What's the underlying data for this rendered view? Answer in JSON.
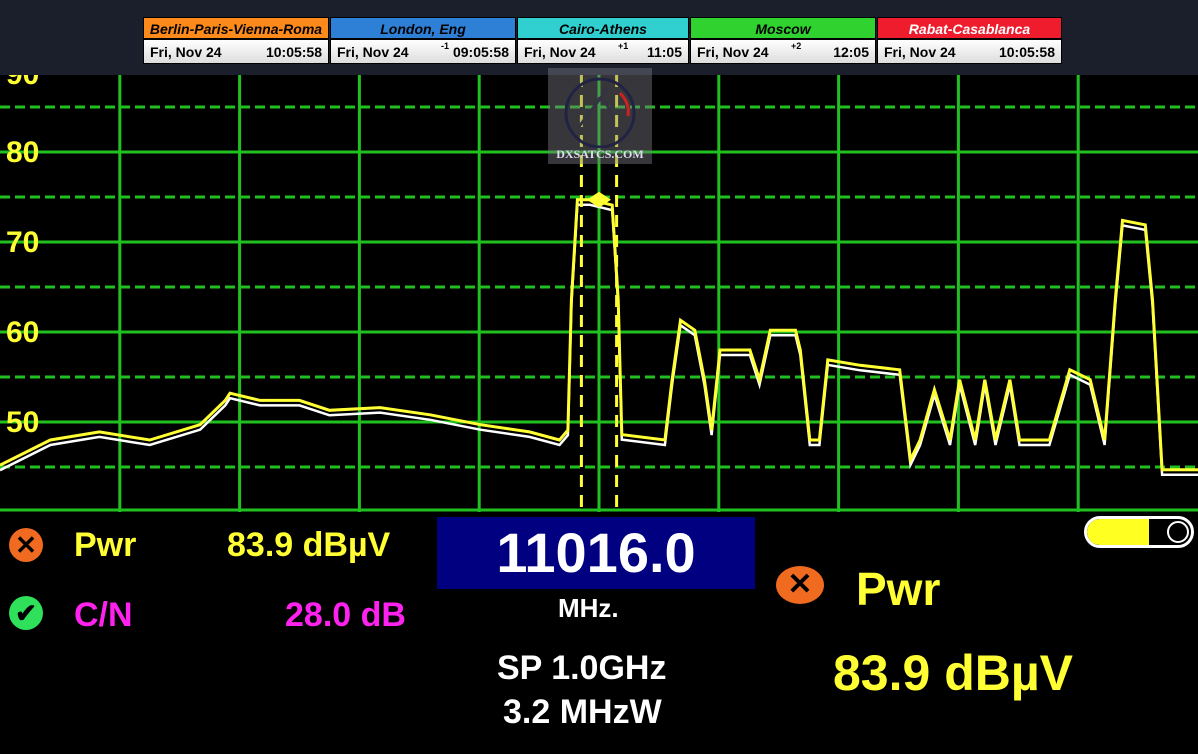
{
  "clocks": [
    {
      "city": "Berlin-Paris-Vienna-Roma",
      "color": "#ff8a1c",
      "date": "Fri, Nov 24",
      "offset": "",
      "time": "10:05:58"
    },
    {
      "city": "London, Eng",
      "color": "#2e7fd6",
      "date": "Fri, Nov 24",
      "offset": "-1",
      "time": "09:05:58"
    },
    {
      "city": "Cairo-Athens",
      "color": "#2fd0cf",
      "date": "Fri, Nov 24",
      "offset": "+1",
      "time": "11:05"
    },
    {
      "city": "Moscow",
      "color": "#2fd22f",
      "date": "Fri, Nov 24",
      "offset": "+2",
      "time": "12:05"
    },
    {
      "city": "Rabat-Casablanca",
      "color": "#ee1c2c",
      "date": "Fri, Nov 24",
      "offset": "",
      "time": "10:05:58"
    }
  ],
  "watermark": "DXSATCS.COM",
  "chart_data": {
    "type": "line",
    "title": "",
    "xlabel": "",
    "ylabel": "",
    "center_freq_mhz": 11016.0,
    "span_mhz": 1000,
    "xlim": [
      10516,
      11516
    ],
    "ylim": [
      40.2,
      88.6
    ],
    "y_ticks": [
      50,
      60,
      70,
      80,
      90
    ],
    "grid": true,
    "colors": {
      "trace": "#ffff33",
      "hold_trace": "#ffffff",
      "grid": "#1fc01f"
    },
    "marker": {
      "freq": 11016,
      "level": 74.7,
      "bandwidth_mhz": 3.2
    },
    "trace": [
      [
        10516,
        45.2
      ],
      [
        10558,
        48.0
      ],
      [
        10599,
        48.9
      ],
      [
        10641,
        48.0
      ],
      [
        10683,
        49.7
      ],
      [
        10704,
        52.4
      ],
      [
        10708,
        53.2
      ],
      [
        10733,
        52.4
      ],
      [
        10766,
        52.4
      ],
      [
        10791,
        51.3
      ],
      [
        10833,
        51.6
      ],
      [
        10875,
        50.8
      ],
      [
        10917,
        49.7
      ],
      [
        10958,
        48.9
      ],
      [
        10983,
        48.0
      ],
      [
        10990,
        49.1
      ],
      [
        10993,
        63.6
      ],
      [
        10998,
        74.7
      ],
      [
        11008,
        74.7
      ],
      [
        11027,
        74.1
      ],
      [
        11032,
        63.6
      ],
      [
        11035,
        48.6
      ],
      [
        11071,
        48.0
      ],
      [
        11077,
        54.7
      ],
      [
        11084,
        61.3
      ],
      [
        11096,
        60.2
      ],
      [
        11104,
        54.7
      ],
      [
        11110,
        49.1
      ],
      [
        11117,
        58.0
      ],
      [
        11142,
        58.0
      ],
      [
        11150,
        54.7
      ],
      [
        11159,
        60.2
      ],
      [
        11180,
        60.2
      ],
      [
        11184,
        58.0
      ],
      [
        11192,
        48.0
      ],
      [
        11200,
        48.0
      ],
      [
        11207,
        56.9
      ],
      [
        11234,
        56.3
      ],
      [
        11267,
        55.8
      ],
      [
        11276,
        45.8
      ],
      [
        11284,
        48.0
      ],
      [
        11296,
        53.6
      ],
      [
        11309,
        48.0
      ],
      [
        11317,
        54.7
      ],
      [
        11330,
        48.0
      ],
      [
        11338,
        54.7
      ],
      [
        11347,
        48.0
      ],
      [
        11359,
        54.7
      ],
      [
        11367,
        48.0
      ],
      [
        11392,
        48.0
      ],
      [
        11409,
        55.8
      ],
      [
        11426,
        54.7
      ],
      [
        11438,
        48.0
      ],
      [
        11447,
        63.6
      ],
      [
        11453,
        72.4
      ],
      [
        11472,
        71.9
      ],
      [
        11478,
        63.6
      ],
      [
        11486,
        44.7
      ],
      [
        11516,
        44.7
      ]
    ]
  },
  "readout": {
    "pwr_label": "Pwr",
    "pwr_value": "83.9 dBµV",
    "cn_label": "C/N",
    "cn_value": "28.0 dB",
    "frequency": "11016.0",
    "freq_unit": "MHz.",
    "span": "SP 1.0GHz",
    "bandwidth": "3.2 MHzW",
    "big_pwr_label": "Pwr",
    "big_pwr_value": "83.9 dBµV",
    "pwr_status": "fail",
    "cn_status": "ok",
    "battery_level": 0.6
  }
}
